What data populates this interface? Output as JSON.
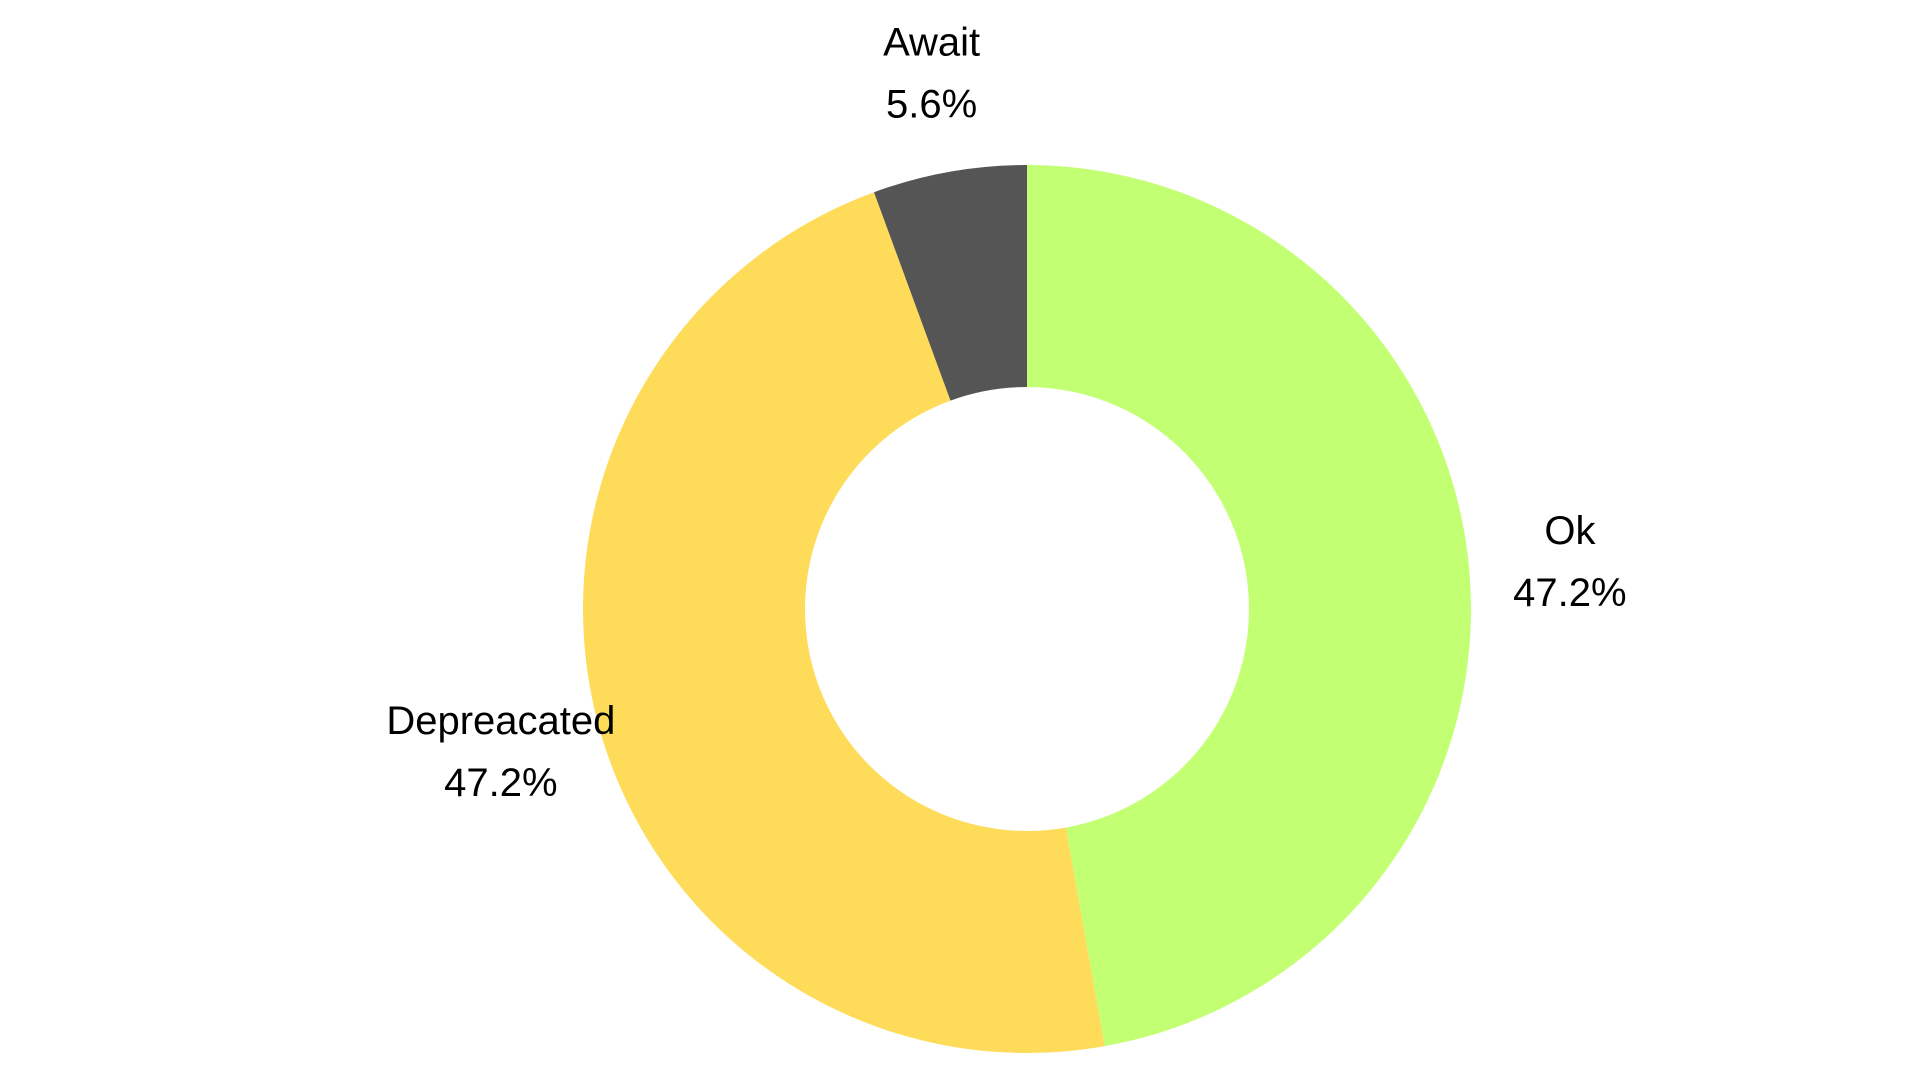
{
  "chart_data": {
    "type": "pie",
    "variant": "donut",
    "start_angle": "12 o'clock",
    "direction": "clockwise",
    "series": [
      {
        "values": [
          {
            "label": "Ok",
            "value": 47.2,
            "display": "47.2%",
            "color": "#C3FF73"
          },
          {
            "label": "Depreacated",
            "value": 47.2,
            "display": "47.2%",
            "color": "#FEDC5A"
          },
          {
            "label": "Await",
            "value": 5.6,
            "display": "5.6%",
            "color": "#555555"
          }
        ]
      }
    ]
  }
}
